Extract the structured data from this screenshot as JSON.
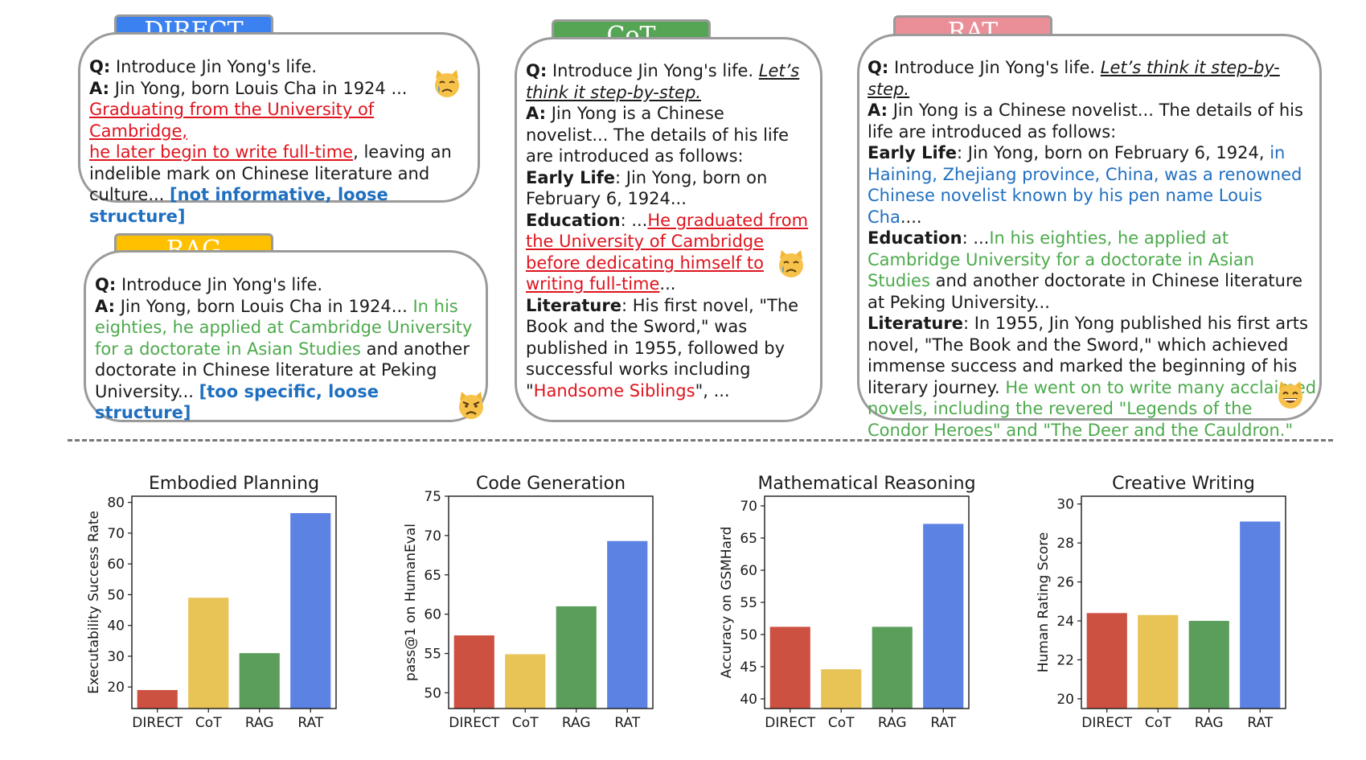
{
  "panels": {
    "direct": {
      "tag": "DIRECT",
      "tag_color": "#3b82f0",
      "q_prefix": "Q:",
      "question": "Introduce Jin Yong's life.",
      "a_prefix": "A:",
      "a_text": "Jin Yong, born Louis Cha in 1924 ...",
      "red_1": "Graduating from the University of Cambridge,",
      "red_2": "he later begin to write full-time",
      "rest": ", leaving an indelible mark on Chinese literature and culture...",
      "note": "[not informative, loose structure]",
      "emoji": "crying-cat"
    },
    "rag": {
      "tag": "RAG",
      "tag_color": "#ffc000",
      "q_prefix": "Q:",
      "question": "Introduce Jin Yong's life.",
      "a_prefix": "A:",
      "a_text": "Jin Yong, born Louis Cha in 1924...",
      "green": "In his eighties, he applied at Cambridge University for a doctorate in Asian Studies",
      "rest": "and another doctorate in Chinese literature at Peking University...",
      "note": "[too specific, loose structure]",
      "emoji": "pouting-cat"
    },
    "cot": {
      "tag": "CoT",
      "tag_color": "#55a555",
      "q_prefix": "Q:",
      "question": "Introduce Jin Yong's life.",
      "prompt": "Let’s think it step-by-step.",
      "a_prefix": "A:",
      "a_text": "Jin Yong is a Chinese novelist... The details of his life are introduced as follows:",
      "early_label": "Early Life",
      "early_text": ": Jin Yong, born on February 6, 1924...",
      "edu_label": "Education",
      "edu_text": ": ...",
      "edu_red": "He graduated from the University of Cambridge before dedicating himself to writing full-time",
      "edu_end": "...",
      "lit_label": "Literature",
      "lit_text": ": His first novel, \"The Book and the Sword,\" was published in 1955, followed by successful works including \"",
      "lit_red": "Handsome Siblings",
      "lit_end": "\", ...",
      "emoji": "crying-cat"
    },
    "rat": {
      "tag": "RAT",
      "tag_color": "#ea8f98",
      "q_prefix": "Q:",
      "question": "Introduce Jin Yong's life.",
      "prompt": "Let’s think it step-by-step.",
      "a_prefix": "A:",
      "a_text": "Jin Yong is a Chinese novelist... The details of his life are introduced as follows:",
      "early_label": "Early Life",
      "early_text": ": Jin Yong, born on February 6, 1924,",
      "early_blue": "in Haining, Zhejiang province, China, was a renowned Chinese novelist known by his pen name Louis Cha",
      "early_end": "....",
      "edu_label": "Education",
      "edu_text": ": ...",
      "edu_green": "In his eighties, he applied at Cambridge University for a doctorate in Asian Studies",
      "edu_end": "and another doctorate in Chinese literature at Peking University...",
      "lit_label": "Literature",
      "lit_text": ": In 1955, Jin Yong published his first arts novel, \"The Book and the Sword,\" which achieved immense success and marked the beginning of his literary journey.",
      "lit_green": "He went on to write many acclaimed novels, including the revered \"Legends of the Condor Heroes\" and \"The Deer and the Cauldron.\"",
      "emoji": "grinning-cat"
    }
  },
  "bar_colors": [
    "#cc5141",
    "#e8c356",
    "#5b9e5b",
    "#5c82e3"
  ],
  "chart_data": [
    {
      "type": "bar",
      "title": "Embodied Planning",
      "ylabel": "Executability Success Rate",
      "categories": [
        "DIRECT",
        "CoT",
        "RAG",
        "RAT"
      ],
      "values": [
        19,
        49,
        31,
        76.5
      ],
      "ylim": [
        13,
        82
      ],
      "yticks": [
        "20",
        "30",
        "40",
        "50",
        "60",
        "70",
        "80"
      ]
    },
    {
      "type": "bar",
      "title": "Code Generation",
      "ylabel": "pass@1 on HumanEval",
      "categories": [
        "DIRECT",
        "CoT",
        "RAG",
        "RAT"
      ],
      "values": [
        57.3,
        54.9,
        61.0,
        69.3
      ],
      "ylim": [
        48,
        75
      ],
      "yticks": [
        "50",
        "55",
        "60",
        "65",
        "70",
        "75"
      ]
    },
    {
      "type": "bar",
      "title": "Mathematical Reasoning",
      "ylabel": "Accuracy on GSMHard",
      "categories": [
        "DIRECT",
        "CoT",
        "RAG",
        "RAT"
      ],
      "values": [
        51.2,
        44.6,
        51.2,
        67.2
      ],
      "ylim": [
        38.5,
        71.5
      ],
      "yticks": [
        "40",
        "45",
        "50",
        "55",
        "60",
        "65",
        "70"
      ]
    },
    {
      "type": "bar",
      "title": "Creative Writing",
      "ylabel": "Human Rating Score",
      "categories": [
        "DIRECT",
        "CoT",
        "RAG",
        "RAT"
      ],
      "values": [
        24.4,
        24.3,
        24.0,
        29.1
      ],
      "ylim": [
        19.5,
        30.4
      ],
      "yticks": [
        "20",
        "22",
        "24",
        "26",
        "28",
        "30"
      ]
    }
  ]
}
